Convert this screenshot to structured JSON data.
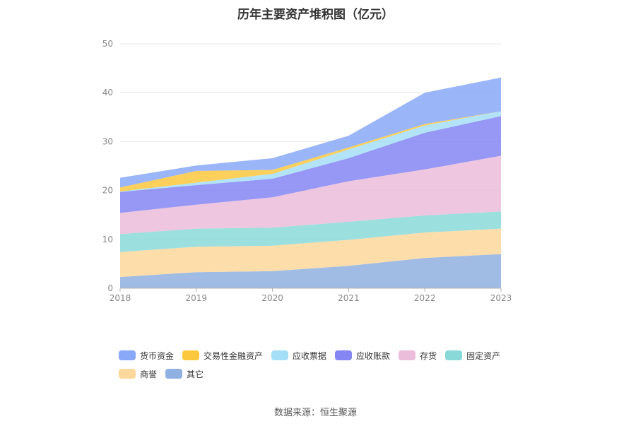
{
  "chart_data": {
    "type": "area",
    "stacked": true,
    "title": "历年主要资产堆积图（亿元）",
    "x": [
      "2018",
      "2019",
      "2020",
      "2021",
      "2022",
      "2023"
    ],
    "ylim": [
      0,
      50
    ],
    "yticks": [
      0,
      10,
      20,
      30,
      40,
      50
    ],
    "grid": true,
    "legend_position": "bottom",
    "series": [
      {
        "name": "其它",
        "color": "#8fb0e0",
        "values": [
          2.3,
          3.3,
          3.5,
          4.6,
          6.2,
          7.0
        ]
      },
      {
        "name": "商誉",
        "color": "#fdd89c",
        "values": [
          5.1,
          5.2,
          5.2,
          5.3,
          5.2,
          5.2
        ]
      },
      {
        "name": "固定资产",
        "color": "#8ad9d9",
        "values": [
          3.7,
          3.7,
          3.7,
          3.7,
          3.5,
          3.5
        ]
      },
      {
        "name": "存货",
        "color": "#ecbcdb",
        "values": [
          4.3,
          4.9,
          6.2,
          8.3,
          9.4,
          11.4
        ]
      },
      {
        "name": "应收账款",
        "color": "#8585f3",
        "values": [
          4.3,
          4.0,
          3.8,
          4.7,
          7.5,
          8.1
        ]
      },
      {
        "name": "应收票据",
        "color": "#a5def7",
        "values": [
          0.1,
          0.5,
          1.0,
          1.8,
          1.5,
          1.0
        ]
      },
      {
        "name": "交易性金融资产",
        "color": "#fcc83d",
        "values": [
          0.8,
          2.4,
          0.8,
          0.4,
          0.3,
          0.0
        ]
      },
      {
        "name": "货币资金",
        "color": "#8aa8f8",
        "values": [
          2.0,
          1.1,
          2.4,
          2.4,
          6.4,
          6.9
        ]
      }
    ],
    "legend_order": [
      "货币资金",
      "交易性金融资产",
      "应收票据",
      "应收账款",
      "存货",
      "固定资产",
      "商誉",
      "其它"
    ]
  },
  "source": "数据来源：恒生聚源"
}
